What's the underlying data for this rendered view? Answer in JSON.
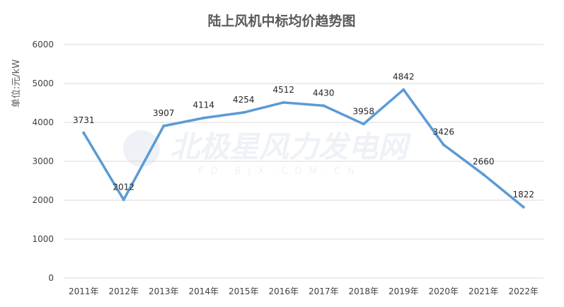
{
  "chart_data": {
    "type": "line",
    "title": "陆上风机中标均价趋势图",
    "ylabel": "单位:元/kW",
    "xlabel": "",
    "categories": [
      "2011年",
      "2012年",
      "2013年",
      "2014年",
      "2015年",
      "2016年",
      "2017年",
      "2018年",
      "2019年",
      "2020年",
      "2021年",
      "2022年"
    ],
    "series": [
      {
        "values": [
          3731,
          2012,
          3907,
          4114,
          4254,
          4512,
          4430,
          3958,
          4842,
          3426,
          2660,
          1822
        ]
      }
    ],
    "yticks": [
      "0",
      "1000",
      "2000",
      "3000",
      "4000",
      "5000",
      "6000"
    ],
    "ylim": [
      0,
      6000
    ],
    "grid": true,
    "legend": "none",
    "line_color": "#5b9bd5"
  },
  "watermark": {
    "main": "北极星风力发电网",
    "sub": "FD.BJX.COM.CN"
  }
}
